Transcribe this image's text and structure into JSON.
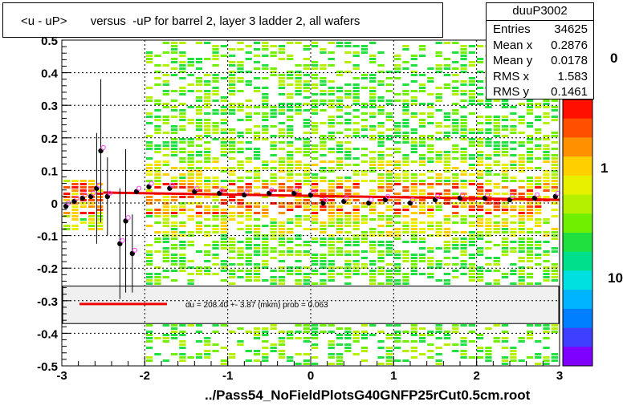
{
  "title": "<u - uP>       versus  -uP for barrel 2, layer 3 ladder 2, all wafers",
  "stats": {
    "name": "duuP3002",
    "rows": [
      {
        "key": "Entries",
        "value": "34625"
      },
      {
        "key": "Mean x",
        "value": "0.2876"
      },
      {
        "key": "Mean y",
        "value": "0.0178"
      },
      {
        "key": "RMS x",
        "value": "1.583"
      },
      {
        "key": "RMS y",
        "value": "0.1461"
      }
    ]
  },
  "fit_legend": "du =  208.40 +-  3.87 (mkm) prob = 0.063",
  "chart_data": {
    "type": "heatmap",
    "xlabel": "../Pass54_NoFieldPlotsG40GNFP25rCut0.5cm.root",
    "ylabel": "",
    "xlim": [
      -3,
      3
    ],
    "ylim": [
      -0.5,
      0.5
    ],
    "x_ticks": [
      "-3",
      "-2",
      "-1",
      "0",
      "1",
      "2",
      "3"
    ],
    "y_ticks": [
      "-0.5",
      "-0.4",
      "-0.3",
      "-0.2",
      "-0.1",
      "0",
      "0.1",
      "0.2",
      "0.3",
      "0.4",
      "0.5"
    ],
    "grid": true,
    "color_scale": {
      "type": "log",
      "labels": [
        "1",
        "10"
      ],
      "partial_label_top": "0"
    },
    "profile_points": [
      {
        "x": -2.95,
        "y": -0.01
      },
      {
        "x": -2.85,
        "y": 0.005
      },
      {
        "x": -2.75,
        "y": 0.015
      },
      {
        "x": -2.65,
        "y": 0.02
      },
      {
        "x": -2.58,
        "y": 0.045
      },
      {
        "x": -2.53,
        "y": 0.16
      },
      {
        "x": -2.45,
        "y": 0.02
      },
      {
        "x": -2.3,
        "y": -0.125
      },
      {
        "x": -2.23,
        "y": -0.055
      },
      {
        "x": -2.15,
        "y": -0.155
      },
      {
        "x": -2.1,
        "y": 0.035
      },
      {
        "x": -1.95,
        "y": 0.05
      },
      {
        "x": -1.7,
        "y": 0.045
      },
      {
        "x": -1.4,
        "y": 0.035
      },
      {
        "x": -1.1,
        "y": 0.03
      },
      {
        "x": -0.8,
        "y": 0.025
      },
      {
        "x": -0.5,
        "y": 0.03
      },
      {
        "x": -0.2,
        "y": 0.03
      },
      {
        "x": 0.0,
        "y": 0.025
      },
      {
        "x": 0.15,
        "y": 0.0
      },
      {
        "x": 0.4,
        "y": 0.005
      },
      {
        "x": 0.7,
        "y": 0.0
      },
      {
        "x": 0.9,
        "y": 0.01
      },
      {
        "x": 1.2,
        "y": 0.0
      },
      {
        "x": 1.5,
        "y": 0.01
      },
      {
        "x": 1.8,
        "y": 0.015
      },
      {
        "x": 2.1,
        "y": 0.015
      },
      {
        "x": 2.4,
        "y": 0.01
      },
      {
        "x": 2.7,
        "y": 0.015
      },
      {
        "x": 2.95,
        "y": 0.02
      }
    ],
    "fit_line": {
      "x": [
        -2.5,
        3.0
      ],
      "y": [
        0.032,
        0.01
      ]
    }
  }
}
